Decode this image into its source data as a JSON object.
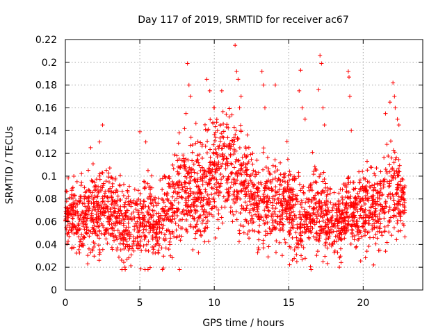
{
  "chart_data": {
    "type": "scatter",
    "title": "Day 117 of 2019, SRMTID for receiver ac67",
    "xlabel": "GPS time / hours",
    "ylabel": "SRMTID / TECUs",
    "xlim": [
      0,
      24
    ],
    "ylim": [
      0,
      0.22
    ],
    "x_ticks": [
      0,
      5,
      10,
      15,
      20
    ],
    "y_ticks": [
      0,
      0.02,
      0.04,
      0.06,
      0.08,
      0.1,
      0.12,
      0.14,
      0.16,
      0.18,
      0.2,
      0.22
    ],
    "x_tick_labels": [
      "0",
      "5",
      "10",
      "15",
      "20"
    ],
    "y_tick_labels": [
      "0",
      "0.02",
      "0.04",
      "0.06",
      "0.08",
      "0.1",
      "0.12",
      "0.14",
      "0.16",
      "0.18",
      "0.2",
      "0.22"
    ],
    "grid": true,
    "marker": "plus",
    "color": "#ff0000",
    "hours_covered": [
      0,
      22.8
    ],
    "profile_hours": [
      0,
      1,
      2,
      3,
      4,
      5,
      6,
      7,
      8,
      9,
      10,
      11,
      12,
      13,
      14,
      15,
      16,
      17,
      18,
      19,
      20,
      21,
      22,
      22.8
    ],
    "profile_median": [
      0.066,
      0.062,
      0.066,
      0.07,
      0.055,
      0.062,
      0.058,
      0.068,
      0.09,
      0.085,
      0.108,
      0.11,
      0.09,
      0.08,
      0.074,
      0.072,
      0.06,
      0.075,
      0.052,
      0.072,
      0.07,
      0.072,
      0.085,
      0.075
    ],
    "profile_spread": [
      0.012,
      0.015,
      0.018,
      0.016,
      0.016,
      0.018,
      0.016,
      0.018,
      0.022,
      0.022,
      0.024,
      0.025,
      0.02,
      0.02,
      0.018,
      0.018,
      0.016,
      0.02,
      0.014,
      0.016,
      0.016,
      0.018,
      0.02,
      0.012
    ],
    "samples_per_hour": 120,
    "outliers": [
      {
        "x": 1.7,
        "y": 0.125
      },
      {
        "x": 2.3,
        "y": 0.13
      },
      {
        "x": 2.5,
        "y": 0.145
      },
      {
        "x": 5.0,
        "y": 0.139
      },
      {
        "x": 5.4,
        "y": 0.13
      },
      {
        "x": 7.6,
        "y": 0.129
      },
      {
        "x": 8.1,
        "y": 0.155
      },
      {
        "x": 8.2,
        "y": 0.199
      },
      {
        "x": 8.3,
        "y": 0.18
      },
      {
        "x": 8.4,
        "y": 0.17
      },
      {
        "x": 9.5,
        "y": 0.185
      },
      {
        "x": 9.7,
        "y": 0.175
      },
      {
        "x": 10.0,
        "y": 0.16
      },
      {
        "x": 10.5,
        "y": 0.175
      },
      {
        "x": 11.0,
        "y": 0.152
      },
      {
        "x": 11.4,
        "y": 0.215
      },
      {
        "x": 11.5,
        "y": 0.192
      },
      {
        "x": 11.6,
        "y": 0.185
      },
      {
        "x": 11.8,
        "y": 0.17
      },
      {
        "x": 11.7,
        "y": 0.16
      },
      {
        "x": 13.2,
        "y": 0.192
      },
      {
        "x": 13.3,
        "y": 0.18
      },
      {
        "x": 13.4,
        "y": 0.16
      },
      {
        "x": 14.1,
        "y": 0.18
      },
      {
        "x": 15.8,
        "y": 0.193
      },
      {
        "x": 15.7,
        "y": 0.175
      },
      {
        "x": 15.9,
        "y": 0.16
      },
      {
        "x": 16.1,
        "y": 0.15
      },
      {
        "x": 17.0,
        "y": 0.176
      },
      {
        "x": 17.1,
        "y": 0.206
      },
      {
        "x": 17.2,
        "y": 0.199
      },
      {
        "x": 17.3,
        "y": 0.16
      },
      {
        "x": 17.4,
        "y": 0.145
      },
      {
        "x": 19.0,
        "y": 0.192
      },
      {
        "x": 19.05,
        "y": 0.187
      },
      {
        "x": 19.1,
        "y": 0.17
      },
      {
        "x": 19.2,
        "y": 0.14
      },
      {
        "x": 21.5,
        "y": 0.155
      },
      {
        "x": 21.8,
        "y": 0.165
      },
      {
        "x": 22.0,
        "y": 0.182
      },
      {
        "x": 22.1,
        "y": 0.17
      },
      {
        "x": 22.15,
        "y": 0.16
      },
      {
        "x": 22.3,
        "y": 0.15
      },
      {
        "x": 22.4,
        "y": 0.145
      },
      {
        "x": 3.8,
        "y": 0.018
      },
      {
        "x": 4.0,
        "y": 0.02
      },
      {
        "x": 16.5,
        "y": 0.018
      },
      {
        "x": 18.4,
        "y": 0.02
      },
      {
        "x": 20.7,
        "y": 0.022
      },
      {
        "x": 1.5,
        "y": 0.023
      }
    ]
  }
}
